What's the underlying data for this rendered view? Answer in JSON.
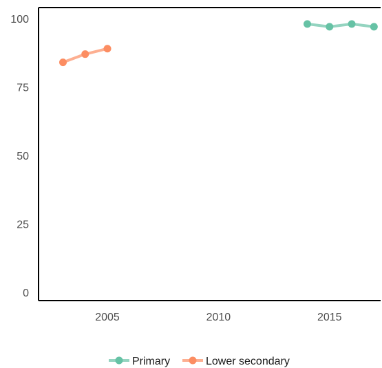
{
  "chart_data": {
    "type": "line",
    "xlabel": "",
    "ylabel": "",
    "xlim": [
      2001.9,
      2017.3
    ],
    "ylim": [
      -3,
      104
    ],
    "x_ticks": [
      "2005",
      "2010",
      "2015"
    ],
    "y_ticks": [
      "0",
      "25",
      "50",
      "75",
      "100"
    ],
    "grid": false,
    "legend_position": "bottom",
    "series": [
      {
        "name": "Primary",
        "color": "#66c2a5",
        "points": [
          {
            "x": 2014,
            "y": 98
          },
          {
            "x": 2015,
            "y": 97
          },
          {
            "x": 2016,
            "y": 98
          },
          {
            "x": 2017,
            "y": 97
          }
        ]
      },
      {
        "name": "Lower secondary",
        "color": "#fc8d62",
        "points": [
          {
            "x": 2003,
            "y": 84
          },
          {
            "x": 2004,
            "y": 87
          },
          {
            "x": 2005,
            "y": 89
          }
        ]
      }
    ]
  }
}
